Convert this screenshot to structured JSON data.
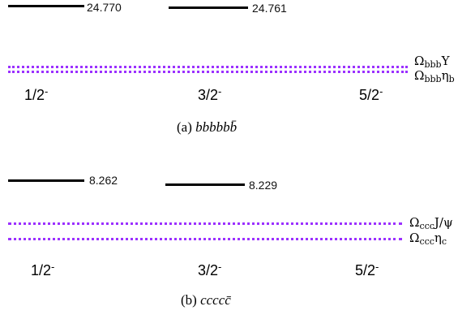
{
  "panels": [
    {
      "caption_prefix": "(a) ",
      "caption_quarks": "bbbbb",
      "caption_antiquark": "b",
      "caption_bar": "̄",
      "levels": [
        {
          "jp": "1/2-",
          "value": "24.770"
        },
        {
          "jp": "3/2-",
          "value": "24.761"
        }
      ],
      "jp_labels": [
        {
          "num": "1/2",
          "parity": "-"
        },
        {
          "num": "3/2",
          "parity": "-"
        },
        {
          "num": "5/2",
          "parity": "-"
        }
      ],
      "thresholds": [
        {
          "omega": "Ω",
          "sub": "bbb",
          "meson": "Υ",
          "meson_sub": ""
        },
        {
          "omega": "Ω",
          "sub": "bbb",
          "meson": "η",
          "meson_sub": "b"
        }
      ]
    },
    {
      "caption_prefix": "(b) ",
      "caption_quarks": "cccc",
      "caption_antiquark": "c",
      "caption_bar": "̄",
      "levels": [
        {
          "jp": "1/2-",
          "value": "8.262"
        },
        {
          "jp": "3/2-",
          "value": "8.229"
        }
      ],
      "jp_labels": [
        {
          "num": "1/2",
          "parity": "-"
        },
        {
          "num": "3/2",
          "parity": "-"
        },
        {
          "num": "5/2",
          "parity": "-"
        }
      ],
      "thresholds": [
        {
          "omega": "Ω",
          "sub": "ccc",
          "meson": "J/ψ",
          "meson_sub": ""
        },
        {
          "omega": "Ω",
          "sub": "ccc",
          "meson": "η",
          "meson_sub": "c"
        }
      ]
    }
  ],
  "colors": {
    "level_line": "#000000",
    "threshold_line": "#9b30ff"
  }
}
